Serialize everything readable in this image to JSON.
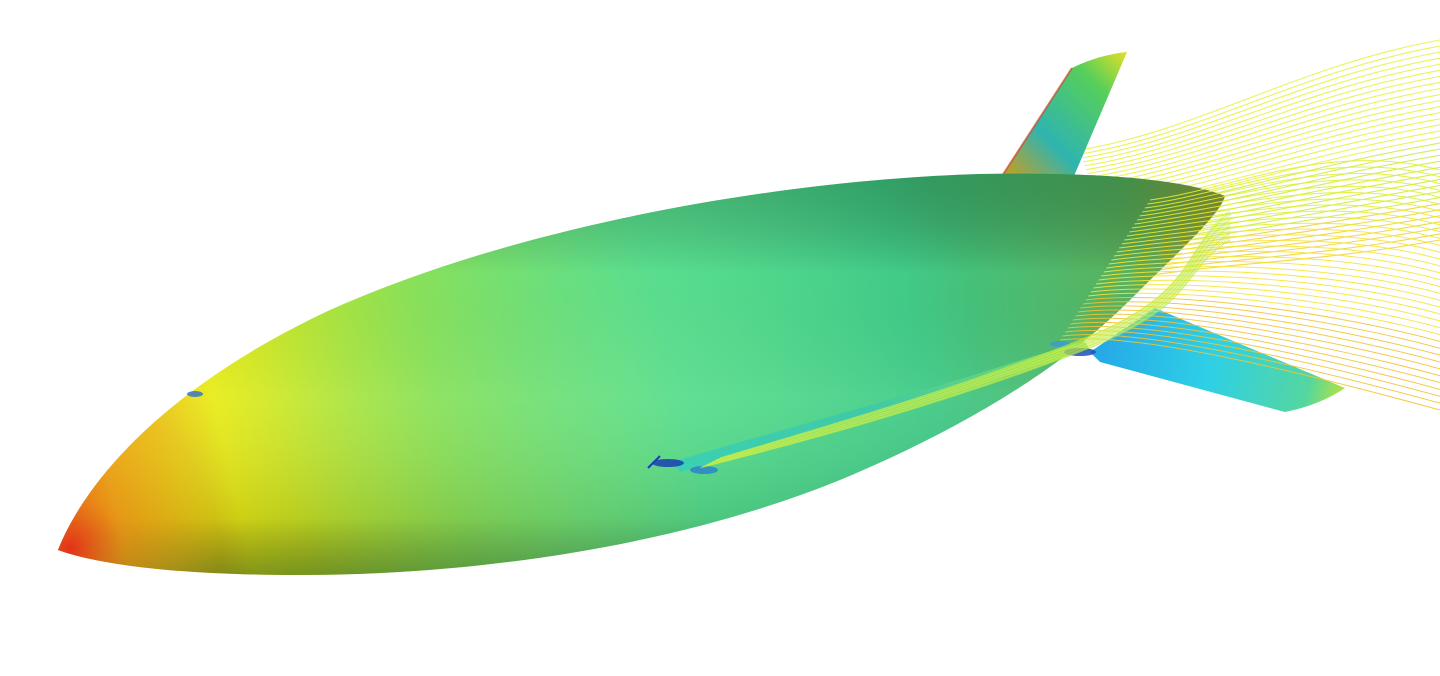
{
  "scene": {
    "kind": "cfd-surface-and-streamline-render",
    "subject_icon": "airship-hull-icon",
    "background_color": "#ffffff",
    "colormap": [
      "#1a3fb0",
      "#1fb8e0",
      "#3cd48a",
      "#8fe04a",
      "#f2ee1e",
      "#f5a21c",
      "#e8321a"
    ],
    "hull_base_color": "#3ccf82",
    "nose_color": "#f26a12",
    "streamline_color": "#d6f03a"
  }
}
